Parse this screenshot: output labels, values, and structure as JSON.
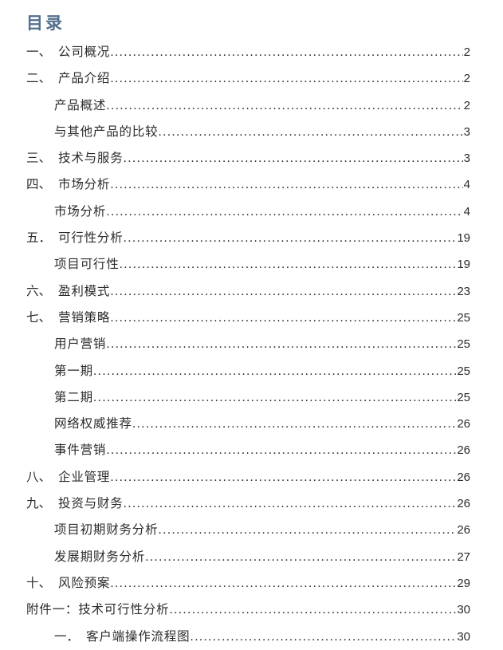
{
  "page": {
    "title": "目录",
    "title_color": "#54708e",
    "text_color": "#2b2b2b",
    "background": "#ffffff"
  },
  "toc": {
    "entries": [
      {
        "num": "一、",
        "label": "公司概况",
        "page": "2",
        "level": 1
      },
      {
        "num": "二、",
        "label": "产品介绍",
        "page": "2",
        "level": 1
      },
      {
        "num": "",
        "label": "产品概述",
        "page": "2",
        "level": 2
      },
      {
        "num": "",
        "label": "与其他产品的比较",
        "page": "3",
        "level": 2
      },
      {
        "num": "三、",
        "label": "技术与服务",
        "page": "3",
        "level": 1
      },
      {
        "num": "四、",
        "label": "市场分析",
        "page": "4",
        "level": 1
      },
      {
        "num": "",
        "label": "市场分析",
        "page": "4",
        "level": 2
      },
      {
        "num": "五．",
        "label": "可行性分析",
        "page": "19",
        "level": 1
      },
      {
        "num": "",
        "label": "项目可行性",
        "page": "19",
        "level": 2
      },
      {
        "num": "六、",
        "label": "盈利模式",
        "page": "23",
        "level": 1
      },
      {
        "num": "七、",
        "label": "营销策略",
        "page": "25",
        "level": 1
      },
      {
        "num": "",
        "label": "用户营销",
        "page": "25",
        "level": 2
      },
      {
        "num": "",
        "label": "第一期",
        "page": "25",
        "level": 2
      },
      {
        "num": "",
        "label": "第二期",
        "page": "25",
        "level": 2
      },
      {
        "num": "",
        "label": "网络权威推荐",
        "page": "26",
        "level": 2
      },
      {
        "num": "",
        "label": "事件营销",
        "page": "26",
        "level": 2
      },
      {
        "num": "八、",
        "label": "企业管理",
        "page": "26",
        "level": 1
      },
      {
        "num": "九、",
        "label": "投资与财务",
        "page": "26",
        "level": 1
      },
      {
        "num": "",
        "label": "项目初期财务分析",
        "page": "26",
        "level": 2
      },
      {
        "num": "",
        "label": "发展期财务分析",
        "page": "27",
        "level": 2
      },
      {
        "num": "十、",
        "label": "风险预案",
        "page": "29",
        "level": 1
      },
      {
        "num": "",
        "label": "附件一：技术可行性分析",
        "page": "30",
        "level": 1
      },
      {
        "num": "一．",
        "label": "客户端操作流程图",
        "page": "30",
        "level": 2
      }
    ]
  }
}
